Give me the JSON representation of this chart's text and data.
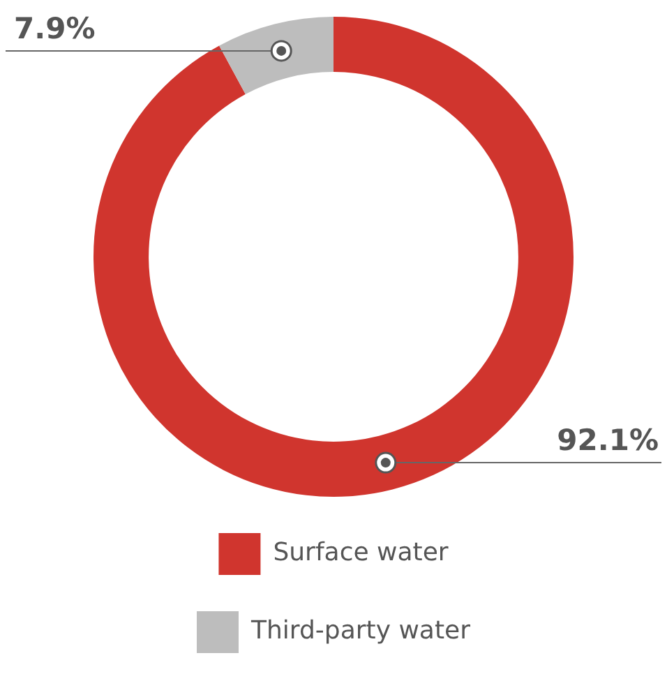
{
  "chart_data": {
    "type": "donut",
    "categories": [
      "Surface water",
      "Third-party water"
    ],
    "values": [
      92.1,
      7.9
    ],
    "colors": [
      "#d0352e",
      "#bdbdbd"
    ],
    "value_labels": [
      "92.1%",
      "7.9%"
    ],
    "legend": "bottom"
  }
}
